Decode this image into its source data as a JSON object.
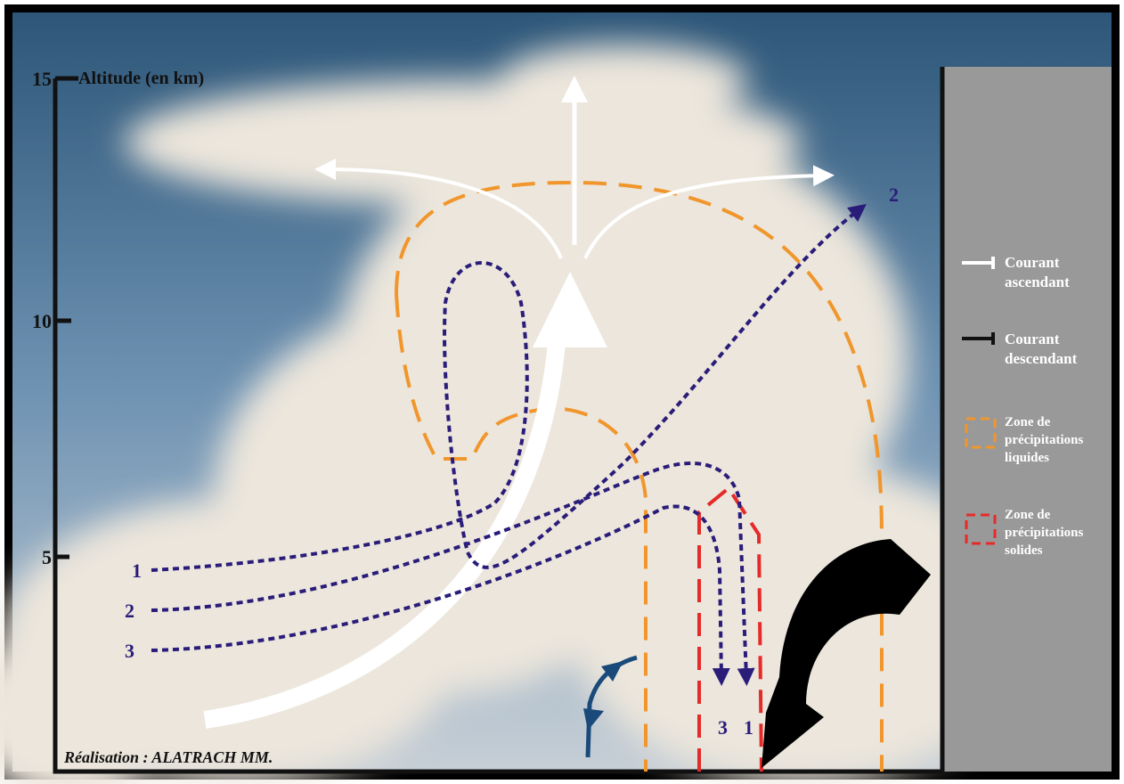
{
  "axis": {
    "title": "Altitude (en km)",
    "ticks": [
      15,
      10,
      5
    ]
  },
  "streams": {
    "left_labels": [
      "1",
      "2",
      "3"
    ],
    "top_label": "2",
    "bottom_labels": [
      "3",
      "1"
    ]
  },
  "legend": [
    {
      "lines": [
        "Courant",
        "ascendant"
      ]
    },
    {
      "lines": [
        "Courant",
        "descendant"
      ]
    },
    {
      "lines": [
        "Zone de",
        "précipitations",
        "liquides"
      ]
    },
    {
      "lines": [
        "Zone de",
        "précipitations",
        "solides"
      ]
    }
  ],
  "credit": "Réalisation : ALATRACH MM."
}
